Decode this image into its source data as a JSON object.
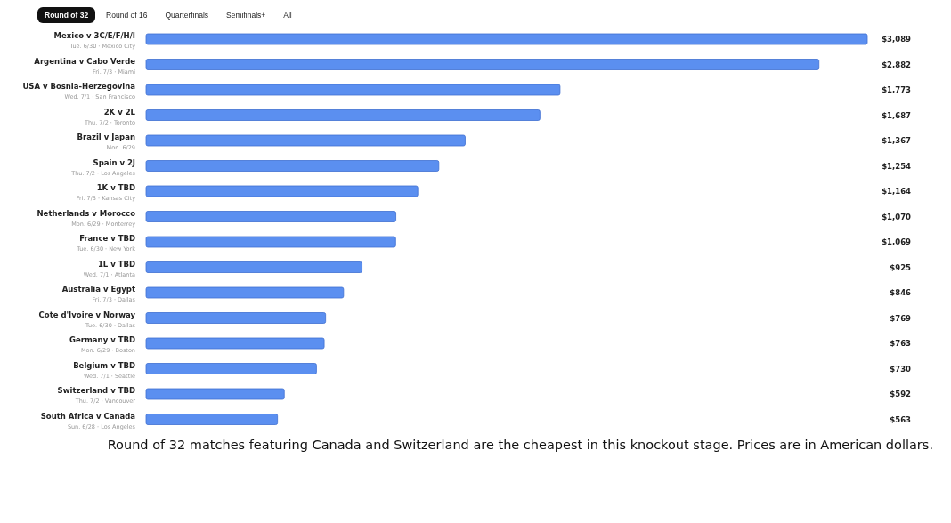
{
  "chart_data": {
    "type": "bar",
    "orientation": "horizontal",
    "color": "#5b8ff0",
    "categories": [
      "Mexico v 3C/E/F/H/I\nTue. 6/30 · Mexico City",
      "Argentina v Cabo Verde\nFri. 7/3 · Miami",
      "USA v Bosnia-Herzegovina\nWed. 7/1 · San Francisco",
      "2K v 2L\nThu. 7/2 · Toronto",
      "Brazil v Japan\nMon. 6/29",
      "Spain v 2J\nThu. 7/2 · Los Angeles",
      "1K v TBD\nFri. 7/3 · Kansas City",
      "Netherlands v Morocco\nMon. 6/29 · Monterrey",
      "France v TBD\nTue. 6/30 · New York",
      "1L v TBD\nWed. 7/1 · Atlanta",
      "Australia v Egypt\nFri. 7/3 · Dallas",
      "Cote d'Ivoire v Norway\nTue. 6/30 · Dallas",
      "Germany v TBD\nMon. 6/29 · Boston",
      "Belgium v TBD\nWed. 7/1 · Seattle",
      "Switzerland v TBD\nThu. 7/2 · Vancouver",
      "South Africa v Canada\nSun. 6/28 · Los Angeles"
    ],
    "values": [
      3089,
      2882,
      1773,
      1687,
      1367,
      1254,
      1164,
      1070,
      1069,
      925,
      846,
      769,
      763,
      730,
      592,
      563
    ],
    "value_labels": [
      "$3,089",
      "$2,882",
      "$1,773",
      "$1,687",
      "$1,367",
      "$1,254",
      "$1,164",
      "$1,070",
      "$1,069",
      "$925",
      "$846",
      "$769",
      "$763",
      "$730",
      "$592",
      "$563"
    ],
    "annotations": [
      "Round of 32",
      "Round of 16",
      "Quarterfinals",
      "Semifinals+",
      "All",
      "Round of 32 matches featuring Canada and Switzerland are the cheapest in this knockout stage. Prices are in American dollars."
    ]
  }
}
